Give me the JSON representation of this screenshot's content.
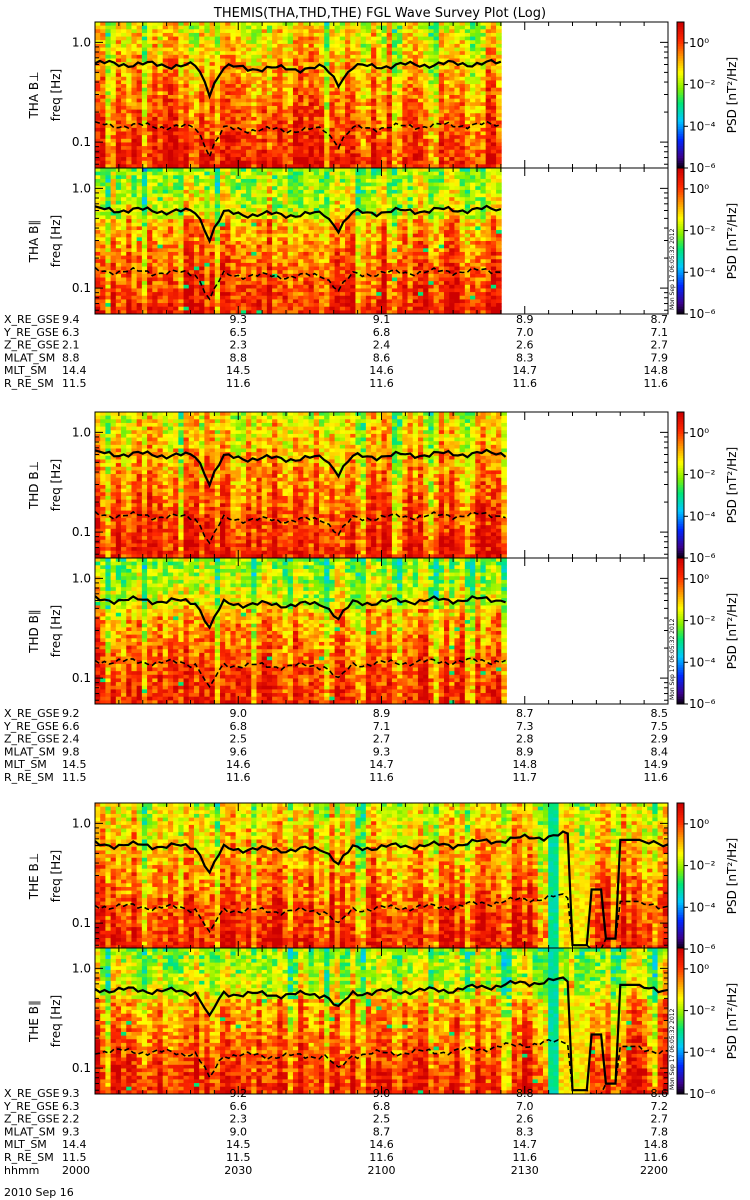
{
  "title": "THEMIS(THA,THD,THE) FGL Wave Survey Plot (Log)",
  "date_label": "2010 Sep 16",
  "stamp": "Mon Sep 17 06:05:32 2012",
  "freq_axis_label": "freq [Hz]",
  "colorbar_label": "PSD [nT²/Hz]",
  "colorbar_ticks": [
    "10⁰",
    "10⁻²",
    "10⁻⁴",
    "10⁻⁶"
  ],
  "freq_ticks": [
    "1.0",
    "0.1"
  ],
  "colors": {
    "background": "#ffffff",
    "frame": "#000000"
  },
  "chart_data": {
    "type": "heatmap",
    "z_scale": "log",
    "y_scale": "log",
    "x_ticks": [
      "2000",
      "2030",
      "2100",
      "2130",
      "2200"
    ],
    "x_label": "hhmm",
    "zlim": [
      1e-06,
      10
    ],
    "ylim": [
      0.055,
      1.6
    ],
    "probes": [
      {
        "id": "THA",
        "panels": [
          {
            "label": "THA B⊥",
            "stamp": false
          },
          {
            "label": "THA B∥",
            "stamp": true
          }
        ],
        "data_end_hhmm": "2125",
        "ephemeris": [
          {
            "name": "X_RE_GSE",
            "values": [
              "9.4",
              "9.3",
              "9.1",
              "8.9",
              "8.7"
            ]
          },
          {
            "name": "Y_RE_GSE",
            "values": [
              "6.3",
              "6.5",
              "6.8",
              "7.0",
              "7.1"
            ]
          },
          {
            "name": "Z_RE_GSE",
            "values": [
              "2.1",
              "2.3",
              "2.4",
              "2.6",
              "2.7"
            ]
          },
          {
            "name": "MLAT_SM",
            "values": [
              "8.8",
              "8.8",
              "8.6",
              "8.3",
              "7.9"
            ]
          },
          {
            "name": "MLT_SM",
            "values": [
              "14.4",
              "14.5",
              "14.6",
              "14.7",
              "14.8"
            ]
          },
          {
            "name": "R_RE_SM",
            "values": [
              "11.5",
              "11.6",
              "11.6",
              "11.6",
              "11.6"
            ]
          }
        ]
      },
      {
        "id": "THD",
        "panels": [
          {
            "label": "THD B⊥",
            "stamp": false
          },
          {
            "label": "THD B∥",
            "stamp": true
          }
        ],
        "data_end_hhmm": "2126",
        "ephemeris": [
          {
            "name": "X_RE_GSE",
            "values": [
              "9.2",
              "9.0",
              "8.9",
              "8.7",
              "8.5"
            ]
          },
          {
            "name": "Y_RE_GSE",
            "values": [
              "6.6",
              "6.8",
              "7.1",
              "7.3",
              "7.5"
            ]
          },
          {
            "name": "Z_RE_GSE",
            "values": [
              "2.4",
              "2.5",
              "2.7",
              "2.8",
              "2.9"
            ]
          },
          {
            "name": "MLAT_SM",
            "values": [
              "9.8",
              "9.6",
              "9.3",
              "8.9",
              "8.4"
            ]
          },
          {
            "name": "MLT_SM",
            "values": [
              "14.5",
              "14.6",
              "14.7",
              "14.8",
              "14.9"
            ]
          },
          {
            "name": "R_RE_SM",
            "values": [
              "11.5",
              "11.6",
              "11.6",
              "11.7",
              "11.6"
            ]
          }
        ]
      },
      {
        "id": "THE",
        "panels": [
          {
            "label": "THE B⊥",
            "stamp": false
          },
          {
            "label": "THE B∥",
            "stamp": true
          }
        ],
        "data_end_hhmm": "2200",
        "ephemeris": [
          {
            "name": "X_RE_GSE",
            "values": [
              "9.3",
              "9.2",
              "9.0",
              "8.8",
              "8.6"
            ]
          },
          {
            "name": "Y_RE_GSE",
            "values": [
              "6.3",
              "6.6",
              "6.8",
              "7.0",
              "7.2"
            ]
          },
          {
            "name": "Z_RE_GSE",
            "values": [
              "2.2",
              "2.3",
              "2.5",
              "2.6",
              "2.7"
            ]
          },
          {
            "name": "MLAT_SM",
            "values": [
              "9.3",
              "9.0",
              "8.7",
              "8.3",
              "7.8"
            ]
          },
          {
            "name": "MLT_SM",
            "values": [
              "14.4",
              "14.5",
              "14.6",
              "14.7",
              "14.8"
            ]
          },
          {
            "name": "R_RE_SM",
            "values": [
              "11.5",
              "11.5",
              "11.6",
              "11.6",
              "11.6"
            ]
          }
        ]
      }
    ]
  }
}
